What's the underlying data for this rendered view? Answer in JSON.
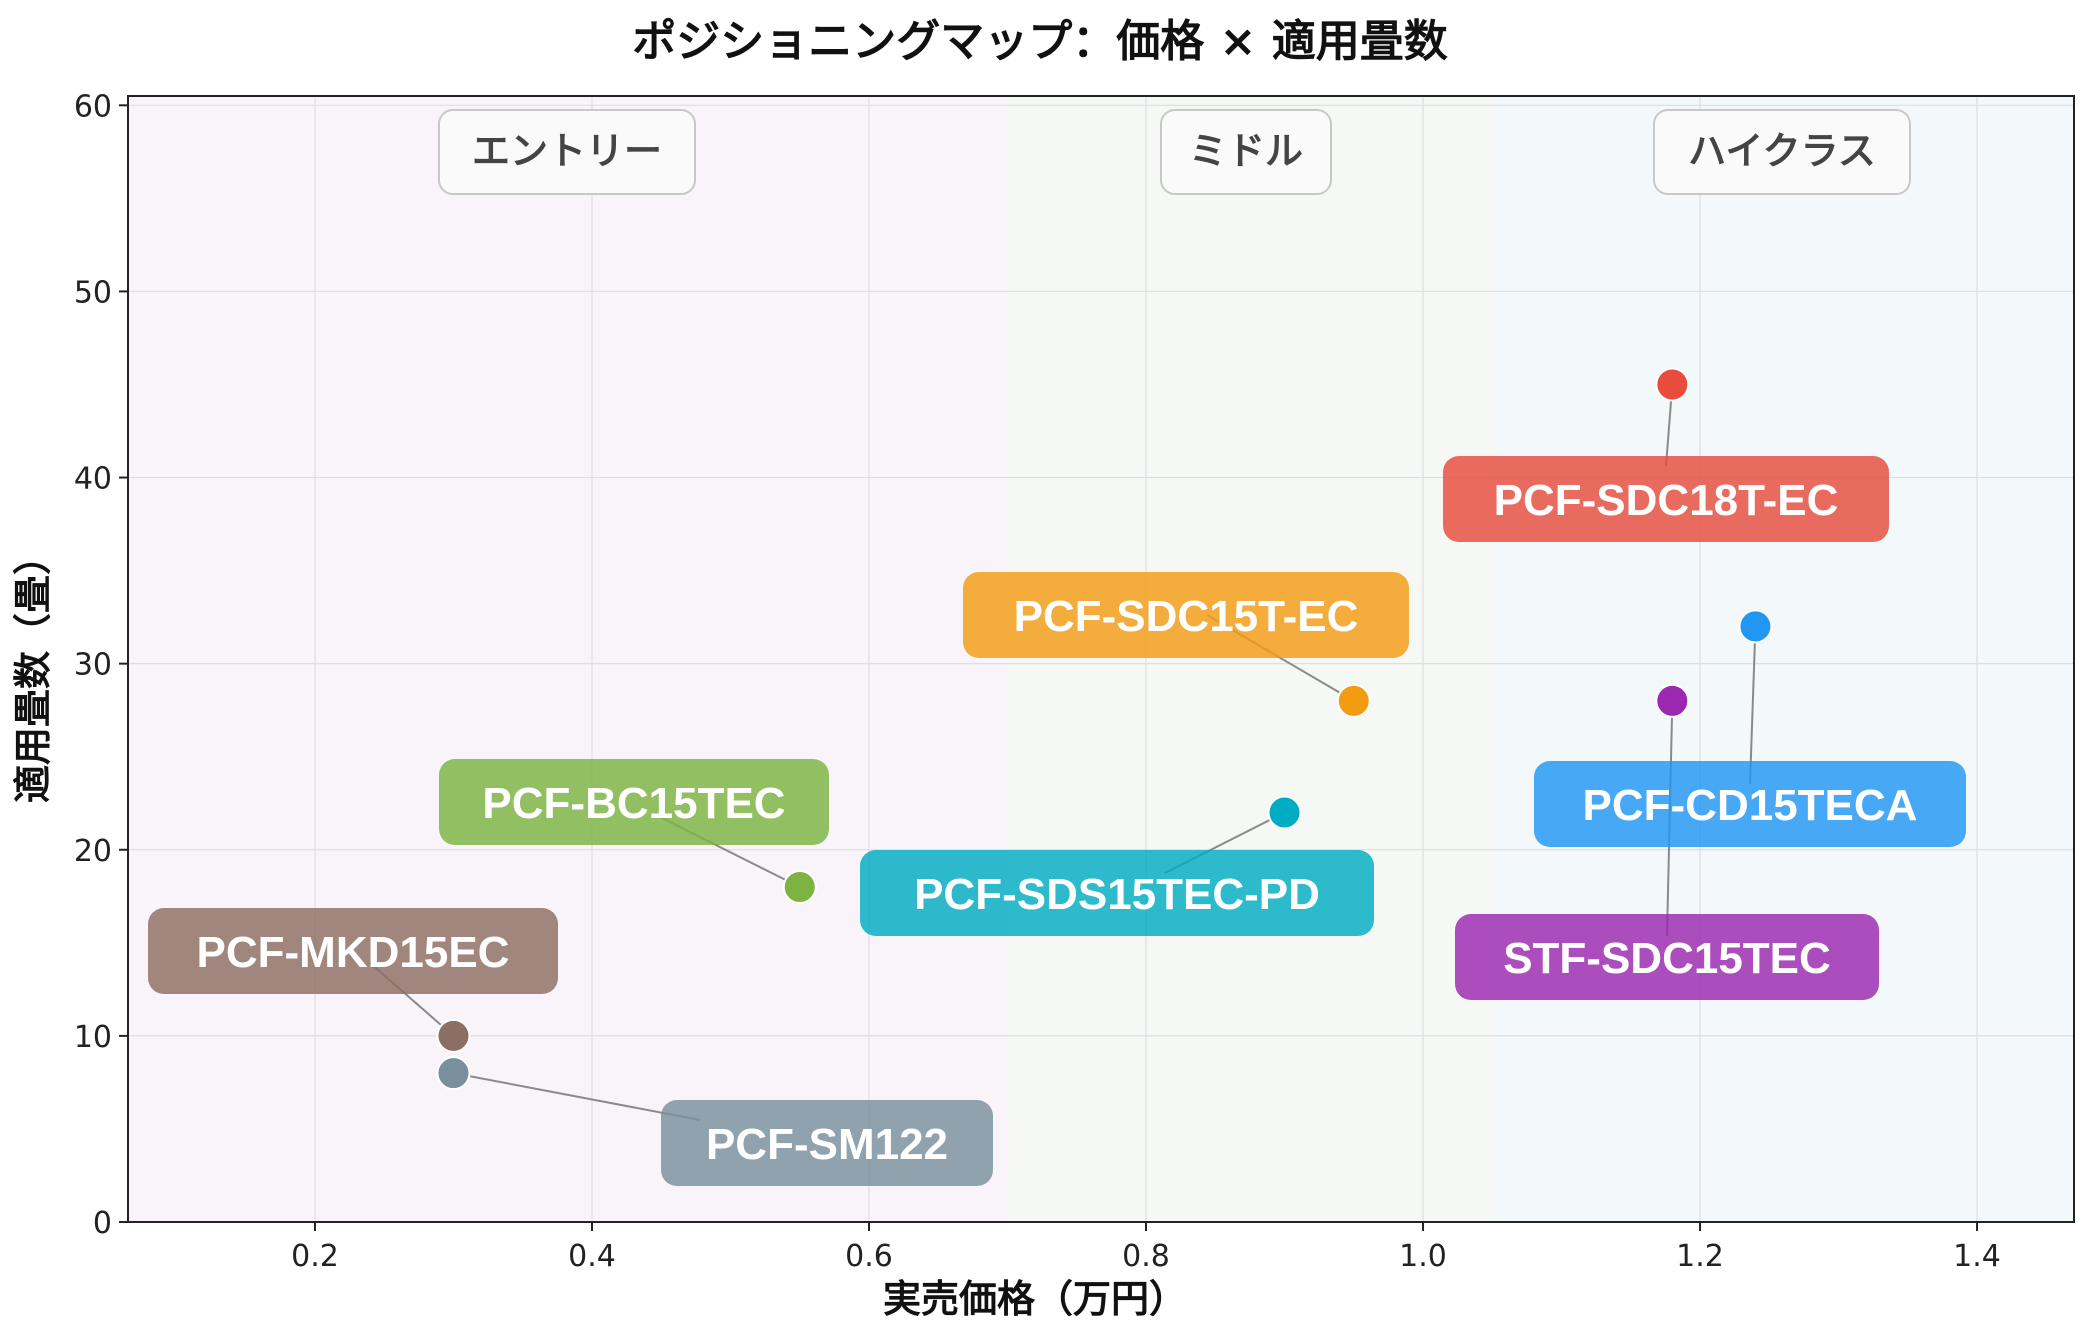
{
  "chart_data": {
    "type": "scatter",
    "title": "ポジショニングマップ：価格 × 適用畳数",
    "xlabel": "実売価格（万円）",
    "ylabel": "適用畳数（畳）",
    "xlim": [
      0.065,
      1.47
    ],
    "ylim": [
      0,
      60.5
    ],
    "xticks": [
      "0.2",
      "0.4",
      "0.6",
      "0.8",
      "1.0",
      "1.2",
      "1.4"
    ],
    "yticks": [
      "0",
      "10",
      "20",
      "30",
      "40",
      "50",
      "60"
    ],
    "grid": true,
    "bands": [
      {
        "label": "エントリー",
        "x_from": 0.065,
        "x_to": 0.7,
        "color": "#f9f4f9"
      },
      {
        "label": "ミドル",
        "x_from": 0.7,
        "x_to": 1.05,
        "color": "#f6f8f6"
      },
      {
        "label": "ハイクラス",
        "x_from": 1.05,
        "x_to": 1.47,
        "color": "#f3f8fb"
      }
    ],
    "points": [
      {
        "name": "PCF-SDC18T-EC",
        "x": 1.18,
        "y": 45,
        "color": "#e74c3c"
      },
      {
        "name": "PCF-CD15TECA",
        "x": 1.24,
        "y": 32,
        "color": "#2196f3"
      },
      {
        "name": "STF-SDC15TEC",
        "x": 1.18,
        "y": 28,
        "color": "#9c27b0"
      },
      {
        "name": "PCF-SDC15T-EC",
        "x": 0.95,
        "y": 28,
        "color": "#f39c12"
      },
      {
        "name": "PCF-SDS15TEC-PD",
        "x": 0.9,
        "y": 22,
        "color": "#00acc1"
      },
      {
        "name": "PCF-BC15TEC",
        "x": 0.55,
        "y": 18,
        "color": "#7cb342"
      },
      {
        "name": "PCF-MKD15EC",
        "x": 0.3,
        "y": 10,
        "color": "#8d6e63"
      },
      {
        "name": "PCF-SM122",
        "x": 0.3,
        "y": 8,
        "color": "#78909c"
      }
    ]
  }
}
